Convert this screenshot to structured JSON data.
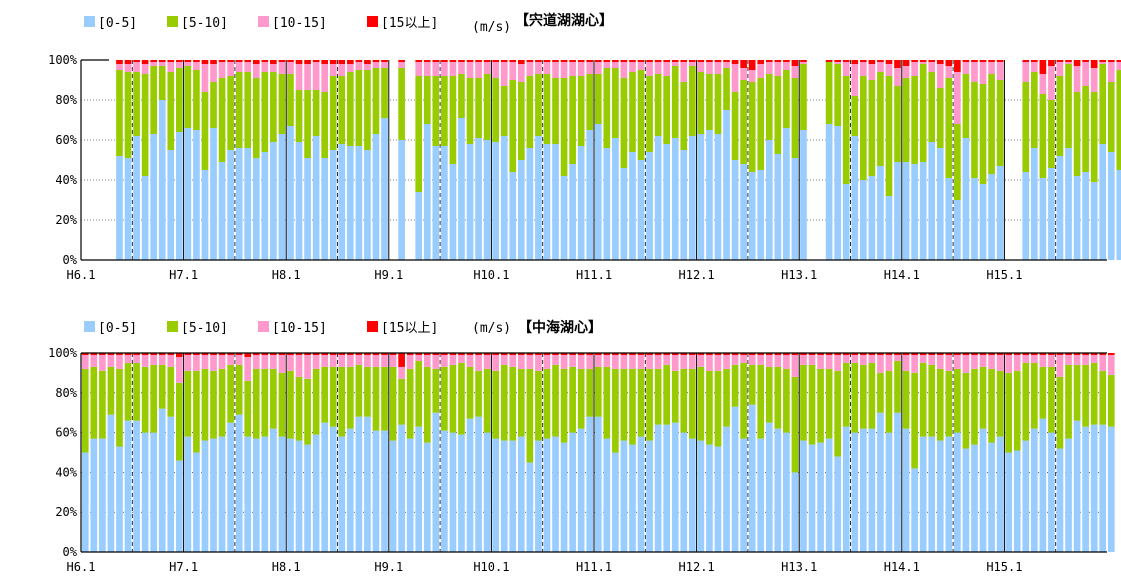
{
  "legend": {
    "items": [
      "[0-5]",
      "[5-10]",
      "[10-15]",
      "[15以上]"
    ],
    "colors": [
      "#99ccff",
      "#99cc00",
      "#ff99cc",
      "#ff0000"
    ],
    "unit": "(m/s)"
  },
  "chart_data": [
    {
      "type": "bar",
      "stacked": true,
      "title": "【宍道湖湖心】",
      "ylim": [
        0,
        100
      ],
      "yticks": [
        "0%",
        "20%",
        "40%",
        "60%",
        "80%",
        "100%"
      ],
      "xtick_labels": [
        "H6.1",
        "H7.1",
        "H8.1",
        "H9.1",
        "H10.1",
        "H11.1",
        "H12.1",
        "H13.1",
        "H14.1",
        "H15.1"
      ],
      "months_per_year": 12,
      "start_month_offset": 2,
      "missing_months": [
        0,
        1,
        36,
        108,
        109
      ],
      "series": [
        {
          "name": "[0-5]",
          "values": [
            0,
            0,
            52,
            51,
            62,
            42,
            63,
            80,
            55,
            64,
            66,
            65,
            45,
            66,
            49,
            55,
            56,
            56,
            51,
            54,
            59,
            63,
            67,
            59,
            51,
            62,
            51,
            55,
            58,
            57,
            57,
            55,
            63,
            71,
            78,
            60,
            0,
            34,
            68,
            57,
            57,
            48,
            71,
            58,
            61,
            60,
            59,
            62,
            44,
            50,
            56,
            62,
            58,
            58,
            42,
            48,
            57,
            65,
            68,
            56,
            61,
            46,
            54,
            50,
            54,
            62,
            58,
            61,
            55,
            62,
            63,
            65,
            63,
            75,
            50,
            48,
            44,
            45,
            60,
            53,
            66,
            51,
            65,
            0,
            0,
            68,
            67,
            38,
            62,
            40,
            42,
            47,
            32,
            49,
            49,
            48,
            49,
            59,
            56,
            41,
            30,
            61,
            41,
            38,
            43,
            47,
            40,
            45,
            44,
            56,
            41,
            46,
            52,
            56,
            42,
            44,
            39,
            58,
            54,
            45,
            34,
            49,
            48,
            50,
            54,
            62,
            49
          ]
        },
        {
          "name": "[5-10]",
          "values": [
            0,
            0,
            43,
            43,
            32,
            51,
            34,
            17,
            39,
            32,
            31,
            30,
            39,
            23,
            42,
            37,
            38,
            38,
            40,
            40,
            35,
            30,
            26,
            26,
            34,
            23,
            33,
            37,
            34,
            37,
            38,
            40,
            33,
            25,
            20,
            36,
            0,
            58,
            24,
            35,
            35,
            44,
            22,
            33,
            30,
            33,
            32,
            25,
            46,
            39,
            36,
            31,
            35,
            33,
            49,
            44,
            35,
            28,
            25,
            40,
            35,
            45,
            40,
            45,
            38,
            31,
            34,
            36,
            34,
            35,
            31,
            28,
            30,
            21,
            34,
            42,
            45,
            46,
            33,
            39,
            29,
            40,
            33,
            0,
            0,
            31,
            31,
            54,
            20,
            52,
            48,
            47,
            60,
            38,
            42,
            44,
            49,
            35,
            30,
            50,
            38,
            32,
            48,
            50,
            50,
            43,
            54,
            48,
            45,
            38,
            42,
            34,
            40,
            42,
            42,
            43,
            45,
            40,
            35,
            50,
            58,
            43,
            46,
            44,
            44,
            35,
            46
          ]
        },
        {
          "name": "[10-15]",
          "values": [
            0,
            0,
            3,
            4,
            5,
            5,
            2,
            2,
            5,
            3,
            2,
            4,
            14,
            9,
            8,
            7,
            5,
            5,
            7,
            5,
            4,
            6,
            6,
            13,
            13,
            14,
            14,
            6,
            6,
            4,
            4,
            3,
            3,
            3,
            1,
            3,
            0,
            7,
            7,
            7,
            7,
            7,
            6,
            8,
            8,
            6,
            8,
            12,
            9,
            9,
            7,
            6,
            6,
            8,
            8,
            7,
            7,
            6,
            6,
            3,
            3,
            8,
            5,
            4,
            7,
            6,
            7,
            2,
            10,
            2,
            5,
            6,
            6,
            3,
            14,
            6,
            6,
            7,
            6,
            7,
            4,
            6,
            1,
            0,
            0,
            0,
            1,
            7,
            16,
            7,
            8,
            5,
            6,
            9,
            6,
            7,
            1,
            5,
            12,
            6,
            26,
            6,
            10,
            11,
            6,
            9,
            5,
            6,
            10,
            5,
            10,
            17,
            7,
            1,
            13,
            12,
            12,
            1,
            10,
            4,
            7,
            7,
            5,
            5,
            1,
            2,
            4
          ]
        },
        {
          "name": "[15以上]",
          "values": [
            0,
            0,
            2,
            2,
            1,
            2,
            1,
            1,
            1,
            1,
            1,
            1,
            2,
            2,
            1,
            1,
            1,
            1,
            2,
            1,
            2,
            1,
            1,
            2,
            2,
            1,
            2,
            2,
            2,
            2,
            1,
            2,
            1,
            1,
            1,
            1,
            0,
            1,
            1,
            1,
            1,
            1,
            1,
            1,
            1,
            1,
            1,
            1,
            1,
            2,
            1,
            1,
            1,
            1,
            1,
            1,
            1,
            1,
            1,
            1,
            1,
            1,
            1,
            1,
            1,
            1,
            1,
            1,
            1,
            1,
            1,
            1,
            1,
            1,
            2,
            4,
            5,
            2,
            1,
            1,
            1,
            3,
            1,
            0,
            0,
            1,
            1,
            1,
            2,
            1,
            2,
            1,
            2,
            4,
            3,
            1,
            1,
            1,
            2,
            3,
            6,
            1,
            1,
            1,
            1,
            1,
            1,
            1,
            1,
            1,
            7,
            3,
            1,
            1,
            3,
            1,
            4,
            1,
            1,
            1,
            1,
            1,
            1,
            1,
            1,
            1,
            1
          ]
        }
      ]
    },
    {
      "type": "bar",
      "stacked": true,
      "title": "【中海湖心】",
      "ylim": [
        0,
        100
      ],
      "yticks": [
        "0%",
        "20%",
        "40%",
        "60%",
        "80%",
        "100%"
      ],
      "xtick_labels": [
        "H6.1",
        "H7.1",
        "H8.1",
        "H9.1",
        "H10.1",
        "H11.1",
        "H12.1",
        "H13.1",
        "H14.1",
        "H15.1"
      ],
      "months_per_year": 12,
      "start_month_offset": 0,
      "missing_months": [],
      "series": [
        {
          "name": "[0-5]",
          "values": [
            50,
            57,
            57,
            69,
            53,
            66,
            66,
            60,
            60,
            72,
            68,
            46,
            58,
            50,
            56,
            57,
            58,
            65,
            69,
            58,
            57,
            58,
            62,
            58,
            57,
            56,
            54,
            59,
            65,
            63,
            58,
            62,
            68,
            68,
            61,
            61,
            56,
            64,
            57,
            63,
            55,
            70,
            61,
            60,
            59,
            67,
            68,
            60,
            57,
            56,
            56,
            58,
            45,
            56,
            57,
            58,
            55,
            60,
            62,
            68,
            68,
            57,
            50,
            56,
            54,
            58,
            56,
            64,
            64,
            65,
            60,
            57,
            56,
            54,
            53,
            63,
            73,
            57,
            74,
            57,
            65,
            62,
            60,
            40,
            56,
            54,
            55,
            57,
            48,
            63,
            60,
            62,
            62,
            70,
            60,
            70,
            62,
            42,
            58,
            58,
            56,
            58,
            60,
            52,
            54,
            62,
            55,
            58,
            50,
            51,
            56,
            62,
            67,
            60,
            52,
            57,
            66,
            63,
            64,
            64,
            63
          ]
        },
        {
          "name": "[5-10]",
          "values": [
            42,
            36,
            34,
            24,
            39,
            29,
            29,
            33,
            34,
            22,
            25,
            39,
            33,
            41,
            36,
            34,
            34,
            29,
            25,
            28,
            35,
            34,
            30,
            32,
            34,
            32,
            33,
            33,
            28,
            30,
            35,
            31,
            26,
            25,
            32,
            32,
            37,
            23,
            35,
            33,
            38,
            22,
            32,
            34,
            36,
            26,
            23,
            32,
            34,
            38,
            37,
            34,
            47,
            35,
            35,
            36,
            37,
            33,
            30,
            24,
            25,
            36,
            42,
            36,
            38,
            34,
            36,
            28,
            30,
            26,
            32,
            35,
            37,
            37,
            38,
            29,
            21,
            38,
            20,
            37,
            28,
            31,
            32,
            48,
            38,
            40,
            37,
            35,
            43,
            32,
            35,
            32,
            33,
            20,
            31,
            26,
            29,
            48,
            37,
            36,
            36,
            33,
            32,
            38,
            38,
            31,
            37,
            33,
            40,
            40,
            39,
            33,
            26,
            33,
            36,
            37,
            28,
            31,
            31,
            27,
            26
          ]
        },
        {
          "name": "[10-15]",
          "values": [
            7,
            6,
            8,
            6,
            7,
            4,
            4,
            6,
            5,
            5,
            6,
            13,
            8,
            8,
            7,
            8,
            7,
            5,
            5,
            12,
            7,
            7,
            7,
            9,
            8,
            11,
            12,
            7,
            6,
            6,
            6,
            6,
            5,
            6,
            6,
            6,
            6,
            6,
            7,
            3,
            6,
            7,
            6,
            5,
            4,
            6,
            8,
            7,
            8,
            5,
            6,
            7,
            7,
            8,
            7,
            5,
            7,
            6,
            7,
            7,
            6,
            6,
            7,
            7,
            7,
            7,
            7,
            7,
            5,
            8,
            7,
            7,
            6,
            8,
            8,
            7,
            5,
            4,
            5,
            5,
            6,
            6,
            7,
            11,
            5,
            5,
            7,
            7,
            8,
            4,
            4,
            5,
            4,
            9,
            8,
            3,
            8,
            9,
            4,
            5,
            7,
            8,
            7,
            9,
            7,
            6,
            7,
            8,
            9,
            8,
            4,
            4,
            6,
            6,
            11,
            5,
            5,
            5,
            4,
            8,
            10
          ]
        },
        {
          "name": "[15以上]",
          "values": [
            1,
            1,
            1,
            1,
            1,
            1,
            1,
            1,
            1,
            1,
            1,
            2,
            1,
            1,
            1,
            1,
            1,
            1,
            1,
            2,
            1,
            1,
            1,
            1,
            1,
            1,
            1,
            1,
            1,
            1,
            1,
            1,
            1,
            1,
            1,
            1,
            1,
            7,
            1,
            1,
            1,
            1,
            1,
            1,
            1,
            1,
            1,
            1,
            1,
            1,
            1,
            1,
            1,
            1,
            1,
            1,
            1,
            1,
            1,
            1,
            1,
            1,
            1,
            1,
            1,
            1,
            1,
            1,
            1,
            1,
            1,
            1,
            1,
            1,
            1,
            1,
            1,
            1,
            1,
            1,
            1,
            1,
            1,
            1,
            1,
            1,
            1,
            1,
            1,
            1,
            1,
            1,
            1,
            1,
            1,
            1,
            1,
            1,
            1,
            1,
            1,
            1,
            1,
            1,
            1,
            1,
            1,
            1,
            1,
            1,
            1,
            1,
            1,
            1,
            1,
            1,
            1,
            1,
            1,
            1,
            1
          ]
        }
      ]
    }
  ]
}
